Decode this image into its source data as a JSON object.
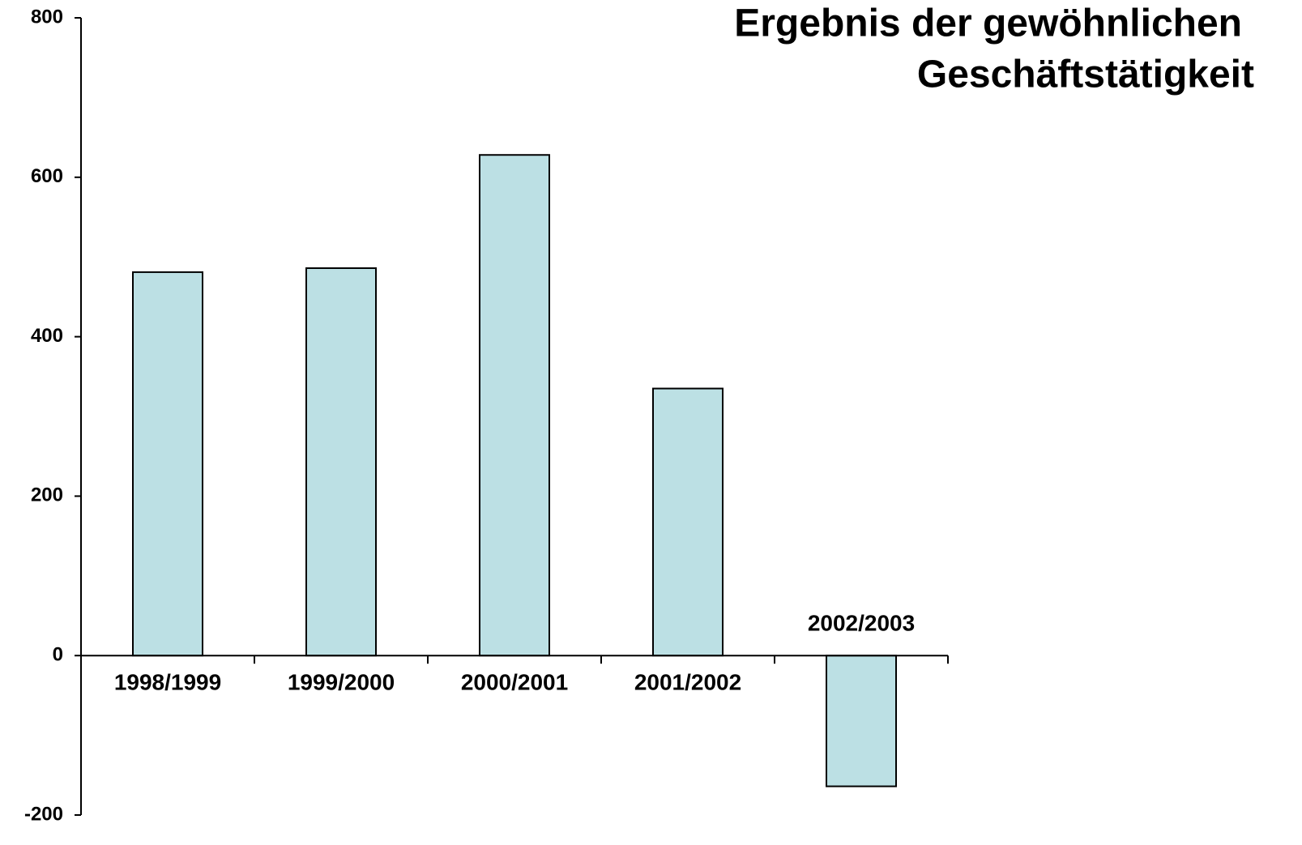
{
  "chart_data": {
    "type": "bar",
    "title": [
      "Ergebnis der gewöhnlichen",
      "Geschäftstätigkeit"
    ],
    "categories": [
      "1998/1999",
      "1999/2000",
      "2000/2001",
      "2001/2002",
      "2002/2003"
    ],
    "values": [
      481,
      486,
      628,
      335,
      -164
    ],
    "color": "#bce0e4",
    "ylim": [
      -200,
      800
    ],
    "yticks": [
      -200,
      0,
      200,
      400,
      600,
      800
    ],
    "grid": false
  }
}
